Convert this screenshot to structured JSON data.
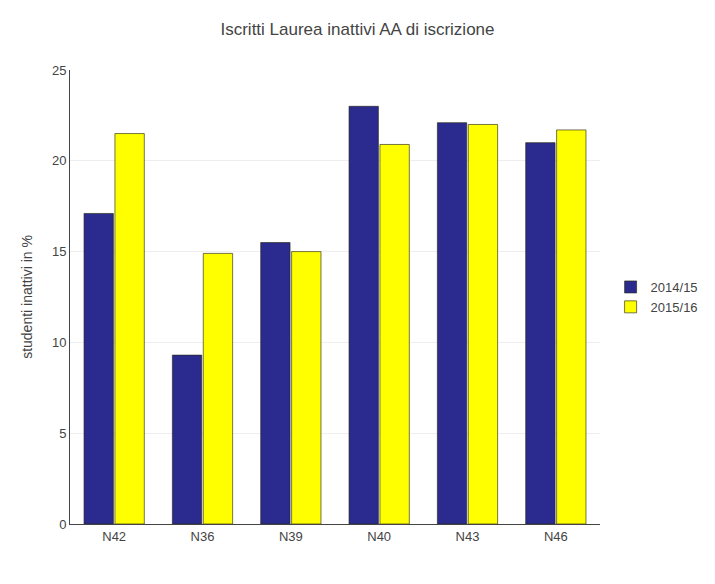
{
  "chart_data": {
    "type": "bar",
    "title": "Iscritti Laurea inattivi AA di iscrizione",
    "categories": [
      "N42",
      "N36",
      "N39",
      "N40",
      "N43",
      "N46"
    ],
    "series": [
      {
        "name": "2014/15",
        "color": "#2B2B8F",
        "values": [
          17.1,
          9.3,
          15.5,
          23.0,
          22.1,
          21.0
        ]
      },
      {
        "name": "2015/16",
        "color": "#FFFF00",
        "values": [
          21.5,
          14.9,
          15.0,
          20.9,
          22.0,
          21.7
        ]
      }
    ],
    "ylabel": "studenti inattivi in %",
    "ylim": [
      0,
      25
    ],
    "yticks": [
      0,
      5,
      10,
      15,
      20,
      25
    ],
    "grid": true,
    "legend": "right"
  }
}
